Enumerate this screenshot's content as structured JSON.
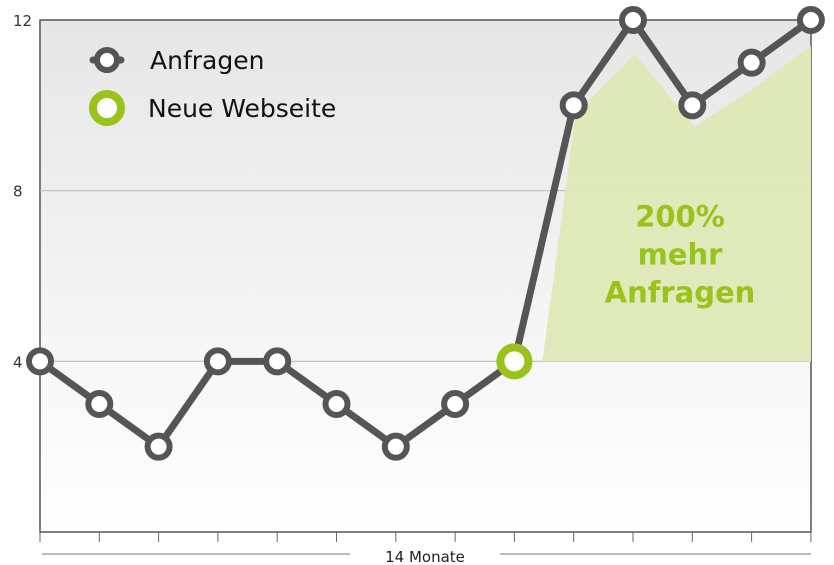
{
  "chart_data": {
    "type": "line",
    "xlabel": "14 Monate",
    "ylabel": "",
    "ylim": [
      0,
      12
    ],
    "yticks": [
      4,
      8,
      12
    ],
    "grid": true,
    "legend": "top-left",
    "series": [
      {
        "name": "Anfragen",
        "color": "#555555",
        "values": [
          4,
          3,
          2,
          4,
          4,
          3,
          2,
          3,
          4,
          10,
          12,
          10,
          11,
          12
        ]
      }
    ],
    "highlight": {
      "name": "Neue Webseite",
      "index": 8,
      "color": "#99c31b"
    },
    "area": {
      "color": "#dde8b6",
      "base": 4,
      "values": [
        4,
        9.8,
        11.2,
        9.5,
        10.4,
        11.4
      ]
    },
    "annotation": {
      "lines": [
        "200%",
        "mehr",
        "Anfragen"
      ],
      "color": "#99c31b"
    }
  }
}
